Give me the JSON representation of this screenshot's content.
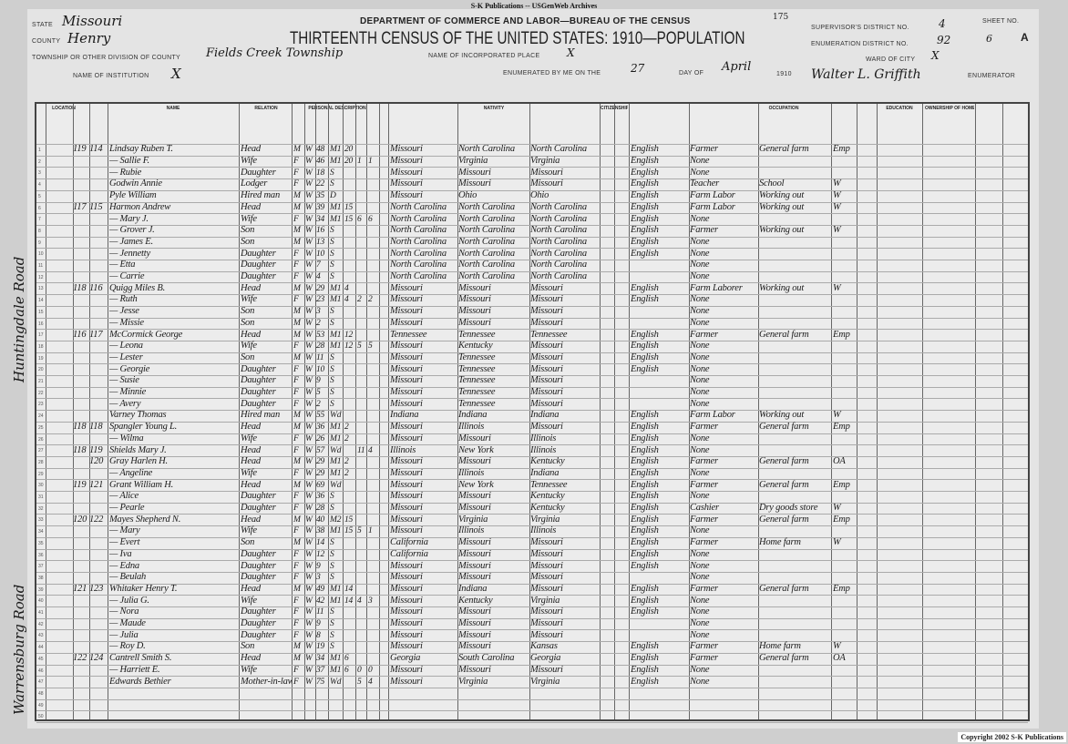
{
  "banner": "S-K Publications -- USGenWeb Archives",
  "copyright": "Copyright 2002 S-K Publications",
  "header": {
    "department": "DEPARTMENT OF COMMERCE AND LABOR—BUREAU OF THE CENSUS",
    "title": "THIRTEENTH CENSUS OF THE UNITED STATES: 1910—POPULATION",
    "page_stamp": "175",
    "state_label": "State",
    "state": "Missouri",
    "county_label": "County",
    "county": "Henry",
    "township_label": "Township or other division of county",
    "township": "Fields Creek Township",
    "incorporated_label": "Name of incorporated place",
    "incorporated": "X",
    "institution_label": "Name of institution",
    "institution": "X",
    "enumerated_label": "Enumerated by me on the",
    "day": "27",
    "day_of_label": "day of",
    "month": "April",
    "year_label": "1910",
    "enumerator": "Walter L. Griffith",
    "enumerator_label": "Enumerator",
    "supervisor_label": "Supervisor's District No.",
    "supervisor": "4",
    "ed_label": "Enumeration District No.",
    "ed": "92",
    "sheet_label": "Sheet No.",
    "sheet": "6",
    "sheet_side": "A",
    "ward_label": "Ward of city",
    "ward": "X"
  },
  "columns": {
    "location": "Location",
    "name": "Name",
    "relation": "Relation",
    "personal": "Personal Description",
    "nativity": "Nativity",
    "citizenship": "Citizenship",
    "occupation": "Occupation",
    "education": "Education",
    "ownership": "Ownership of home"
  },
  "margin_notes": [
    "Huntingdale Road",
    "Warrensburg Road"
  ],
  "rows": [
    [
      "119",
      "114",
      "Lindsay Ruben T.",
      "Head",
      "M",
      "W",
      "48",
      "M1",
      "20",
      "",
      "",
      "Missouri",
      "North Carolina",
      "North Carolina",
      "English",
      "Farmer",
      "General farm",
      "Emp"
    ],
    [
      "",
      "",
      "— Sallie F.",
      "Wife",
      "F",
      "W",
      "46",
      "M1",
      "20",
      "1",
      "1",
      "Missouri",
      "Virginia",
      "Virginia",
      "English",
      "None",
      "",
      ""
    ],
    [
      "",
      "",
      "— Rubie",
      "Daughter",
      "F",
      "W",
      "18",
      "S",
      "",
      "",
      "",
      "Missouri",
      "Missouri",
      "Missouri",
      "English",
      "None",
      "",
      ""
    ],
    [
      "",
      "",
      "Godwin Annie",
      "Lodger",
      "F",
      "W",
      "22",
      "S",
      "",
      "",
      "",
      "Missouri",
      "Missouri",
      "Missouri",
      "English",
      "Teacher",
      "School",
      "W"
    ],
    [
      "",
      "",
      "Pyle William",
      "Hired man",
      "M",
      "W",
      "35",
      "D",
      "",
      "",
      "",
      "Missouri",
      "Ohio",
      "Ohio",
      "English",
      "Farm Labor",
      "Working out",
      "W"
    ],
    [
      "117",
      "115",
      "Harmon Andrew",
      "Head",
      "M",
      "W",
      "39",
      "M1",
      "15",
      "",
      "",
      "North Carolina",
      "North Carolina",
      "North Carolina",
      "English",
      "Farm Labor",
      "Working out",
      "W"
    ],
    [
      "",
      "",
      "— Mary J.",
      "Wife",
      "F",
      "W",
      "34",
      "M1",
      "15",
      "6",
      "6",
      "North Carolina",
      "North Carolina",
      "North Carolina",
      "English",
      "None",
      "",
      ""
    ],
    [
      "",
      "",
      "— Grover J.",
      "Son",
      "M",
      "W",
      "16",
      "S",
      "",
      "",
      "",
      "North Carolina",
      "North Carolina",
      "North Carolina",
      "English",
      "Farmer",
      "Working out",
      "W"
    ],
    [
      "",
      "",
      "— James E.",
      "Son",
      "M",
      "W",
      "13",
      "S",
      "",
      "",
      "",
      "North Carolina",
      "North Carolina",
      "North Carolina",
      "English",
      "None",
      "",
      ""
    ],
    [
      "",
      "",
      "— Jennetty",
      "Daughter",
      "F",
      "W",
      "10",
      "S",
      "",
      "",
      "",
      "North Carolina",
      "North Carolina",
      "North Carolina",
      "English",
      "None",
      "",
      ""
    ],
    [
      "",
      "",
      "— Etta",
      "Daughter",
      "F",
      "W",
      "7",
      "S",
      "",
      "",
      "",
      "North Carolina",
      "North Carolina",
      "North Carolina",
      "",
      "None",
      "",
      ""
    ],
    [
      "",
      "",
      "— Carrie",
      "Daughter",
      "F",
      "W",
      "4",
      "S",
      "",
      "",
      "",
      "North Carolina",
      "North Carolina",
      "North Carolina",
      "",
      "None",
      "",
      ""
    ],
    [
      "118",
      "116",
      "Quigg Miles B.",
      "Head",
      "M",
      "W",
      "29",
      "M1",
      "4",
      "",
      "",
      "Missouri",
      "Missouri",
      "Missouri",
      "English",
      "Farm Laborer",
      "Working out",
      "W"
    ],
    [
      "",
      "",
      "— Ruth",
      "Wife",
      "F",
      "W",
      "23",
      "M1",
      "4",
      "2",
      "2",
      "Missouri",
      "Missouri",
      "Missouri",
      "English",
      "None",
      "",
      ""
    ],
    [
      "",
      "",
      "— Jesse",
      "Son",
      "M",
      "W",
      "3",
      "S",
      "",
      "",
      "",
      "Missouri",
      "Missouri",
      "Missouri",
      "",
      "None",
      "",
      ""
    ],
    [
      "",
      "",
      "— Missie",
      "Son",
      "M",
      "W",
      "2",
      "S",
      "",
      "",
      "",
      "Missouri",
      "Missouri",
      "Missouri",
      "",
      "None",
      "",
      ""
    ],
    [
      "116",
      "117",
      "McCormick George",
      "Head",
      "M",
      "W",
      "53",
      "M1",
      "12",
      "",
      "",
      "Tennessee",
      "Tennessee",
      "Tennessee",
      "English",
      "Farmer",
      "General farm",
      "Emp"
    ],
    [
      "",
      "",
      "— Leona",
      "Wife",
      "F",
      "W",
      "28",
      "M1",
      "12",
      "5",
      "5",
      "Missouri",
      "Kentucky",
      "Missouri",
      "English",
      "None",
      "",
      ""
    ],
    [
      "",
      "",
      "— Lester",
      "Son",
      "M",
      "W",
      "11",
      "S",
      "",
      "",
      "",
      "Missouri",
      "Tennessee",
      "Missouri",
      "English",
      "None",
      "",
      ""
    ],
    [
      "",
      "",
      "— Georgie",
      "Daughter",
      "F",
      "W",
      "10",
      "S",
      "",
      "",
      "",
      "Missouri",
      "Tennessee",
      "Missouri",
      "English",
      "None",
      "",
      ""
    ],
    [
      "",
      "",
      "— Susie",
      "Daughter",
      "F",
      "W",
      "9",
      "S",
      "",
      "",
      "",
      "Missouri",
      "Tennessee",
      "Missouri",
      "",
      "None",
      "",
      ""
    ],
    [
      "",
      "",
      "— Minnie",
      "Daughter",
      "F",
      "W",
      "5",
      "S",
      "",
      "",
      "",
      "Missouri",
      "Tennessee",
      "Missouri",
      "",
      "None",
      "",
      ""
    ],
    [
      "",
      "",
      "— Avery",
      "Daughter",
      "F",
      "W",
      "2",
      "S",
      "",
      "",
      "",
      "Missouri",
      "Tennessee",
      "Missouri",
      "",
      "None",
      "",
      ""
    ],
    [
      "",
      "",
      "Varney Thomas",
      "Hired man",
      "M",
      "W",
      "55",
      "Wd",
      "",
      "",
      "",
      "Indiana",
      "Indiana",
      "Indiana",
      "English",
      "Farm Labor",
      "Working out",
      "W"
    ],
    [
      "118",
      "118",
      "Spangler Young L.",
      "Head",
      "M",
      "W",
      "36",
      "M1",
      "2",
      "",
      "",
      "Missouri",
      "Illinois",
      "Missouri",
      "English",
      "Farmer",
      "General farm",
      "Emp"
    ],
    [
      "",
      "",
      "— Wilma",
      "Wife",
      "F",
      "W",
      "26",
      "M1",
      "2",
      "",
      "",
      "Missouri",
      "Missouri",
      "Illinois",
      "English",
      "None",
      "",
      ""
    ],
    [
      "118",
      "119",
      "Shields Mary J.",
      "Head",
      "F",
      "W",
      "57",
      "Wd",
      "",
      "11",
      "4",
      "Illinois",
      "New York",
      "Illinois",
      "English",
      "None",
      "",
      ""
    ],
    [
      "",
      "120",
      "Gray Harlen H.",
      "Head",
      "M",
      "W",
      "29",
      "M1",
      "2",
      "",
      "",
      "Missouri",
      "Missouri",
      "Kentucky",
      "English",
      "Farmer",
      "General farm",
      "OA"
    ],
    [
      "",
      "",
      "— Angeline",
      "Wife",
      "F",
      "W",
      "29",
      "M1",
      "2",
      "",
      "",
      "Missouri",
      "Illinois",
      "Indiana",
      "English",
      "None",
      "",
      ""
    ],
    [
      "119",
      "121",
      "Grant William H.",
      "Head",
      "M",
      "W",
      "69",
      "Wd",
      "",
      "",
      "",
      "Missouri",
      "New York",
      "Tennessee",
      "English",
      "Farmer",
      "General farm",
      "Emp"
    ],
    [
      "",
      "",
      "— Alice",
      "Daughter",
      "F",
      "W",
      "36",
      "S",
      "",
      "",
      "",
      "Missouri",
      "Missouri",
      "Kentucky",
      "English",
      "None",
      "",
      ""
    ],
    [
      "",
      "",
      "— Pearle",
      "Daughter",
      "F",
      "W",
      "28",
      "S",
      "",
      "",
      "",
      "Missouri",
      "Missouri",
      "Kentucky",
      "English",
      "Cashier",
      "Dry goods store",
      "W"
    ],
    [
      "120",
      "122",
      "Mayes Shepherd N.",
      "Head",
      "M",
      "W",
      "40",
      "M2",
      "15",
      "",
      "",
      "Missouri",
      "Virginia",
      "Virginia",
      "English",
      "Farmer",
      "General farm",
      "Emp"
    ],
    [
      "",
      "",
      "— Mary",
      "Wife",
      "F",
      "W",
      "38",
      "M1",
      "15",
      "5",
      "1",
      "Missouri",
      "Illinois",
      "Illinois",
      "English",
      "None",
      "",
      ""
    ],
    [
      "",
      "",
      "— Evert",
      "Son",
      "M",
      "W",
      "14",
      "S",
      "",
      "",
      "",
      "California",
      "Missouri",
      "Missouri",
      "English",
      "Farmer",
      "Home farm",
      "W"
    ],
    [
      "",
      "",
      "— Iva",
      "Daughter",
      "F",
      "W",
      "12",
      "S",
      "",
      "",
      "",
      "California",
      "Missouri",
      "Missouri",
      "English",
      "None",
      "",
      ""
    ],
    [
      "",
      "",
      "— Edna",
      "Daughter",
      "F",
      "W",
      "9",
      "S",
      "",
      "",
      "",
      "Missouri",
      "Missouri",
      "Missouri",
      "English",
      "None",
      "",
      ""
    ],
    [
      "",
      "",
      "— Beulah",
      "Daughter",
      "F",
      "W",
      "3",
      "S",
      "",
      "",
      "",
      "Missouri",
      "Missouri",
      "Missouri",
      "",
      "None",
      "",
      ""
    ],
    [
      "121",
      "123",
      "Whitaker Henry T.",
      "Head",
      "M",
      "W",
      "49",
      "M1",
      "14",
      "",
      "",
      "Missouri",
      "Indiana",
      "Missouri",
      "English",
      "Farmer",
      "General farm",
      "Emp"
    ],
    [
      "",
      "",
      "— Julia G.",
      "Wife",
      "F",
      "W",
      "42",
      "M1",
      "14",
      "4",
      "3",
      "Missouri",
      "Kentucky",
      "Virginia",
      "English",
      "None",
      "",
      ""
    ],
    [
      "",
      "",
      "— Nora",
      "Daughter",
      "F",
      "W",
      "11",
      "S",
      "",
      "",
      "",
      "Missouri",
      "Missouri",
      "Missouri",
      "English",
      "None",
      "",
      ""
    ],
    [
      "",
      "",
      "— Maude",
      "Daughter",
      "F",
      "W",
      "9",
      "S",
      "",
      "",
      "",
      "Missouri",
      "Missouri",
      "Missouri",
      "",
      "None",
      "",
      ""
    ],
    [
      "",
      "",
      "— Julia",
      "Daughter",
      "F",
      "W",
      "8",
      "S",
      "",
      "",
      "",
      "Missouri",
      "Missouri",
      "Missouri",
      "",
      "None",
      "",
      ""
    ],
    [
      "",
      "",
      "— Roy D.",
      "Son",
      "M",
      "W",
      "19",
      "S",
      "",
      "",
      "",
      "Missouri",
      "Missouri",
      "Kansas",
      "English",
      "Farmer",
      "Home farm",
      "W"
    ],
    [
      "122",
      "124",
      "Cantrell Smith S.",
      "Head",
      "M",
      "W",
      "34",
      "M1",
      "6",
      "",
      "",
      "Georgia",
      "South Carolina",
      "Georgia",
      "English",
      "Farmer",
      "General farm",
      "OA"
    ],
    [
      "",
      "",
      "— Harriett E.",
      "Wife",
      "F",
      "W",
      "37",
      "M1",
      "6",
      "0",
      "0",
      "Missouri",
      "Missouri",
      "Missouri",
      "English",
      "None",
      "",
      ""
    ],
    [
      "",
      "",
      "Edwards Bethier",
      "Mother-in-law",
      "F",
      "W",
      "75",
      "Wd",
      "",
      "5",
      "4",
      "Missouri",
      "Virginia",
      "Virginia",
      "English",
      "None",
      "",
      ""
    ]
  ]
}
